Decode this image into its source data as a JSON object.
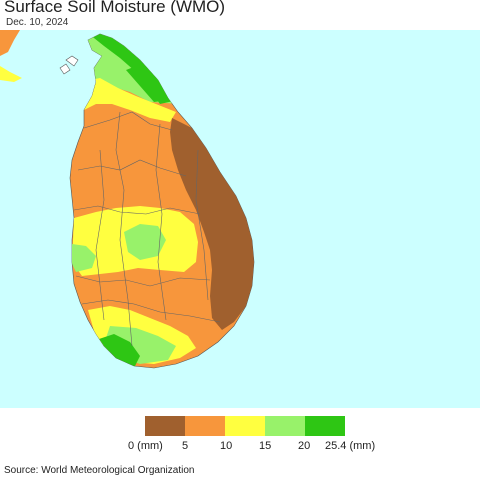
{
  "header": {
    "title": "Surface Soil Moisture (WMO)",
    "date": "Dec. 10, 2024"
  },
  "map": {
    "region": "Sri Lanka",
    "sea_color": "#ccffff",
    "land_color": "#f7963c"
  },
  "legend": {
    "colors": [
      "#a0602e",
      "#f7963c",
      "#ffff40",
      "#98f26a",
      "#2ec614"
    ],
    "labels": [
      "0 (mm)",
      "5",
      "10",
      "15",
      "20",
      "25.4 (mm)"
    ]
  },
  "footer": {
    "source": "Source: World Meteorological Organization"
  }
}
